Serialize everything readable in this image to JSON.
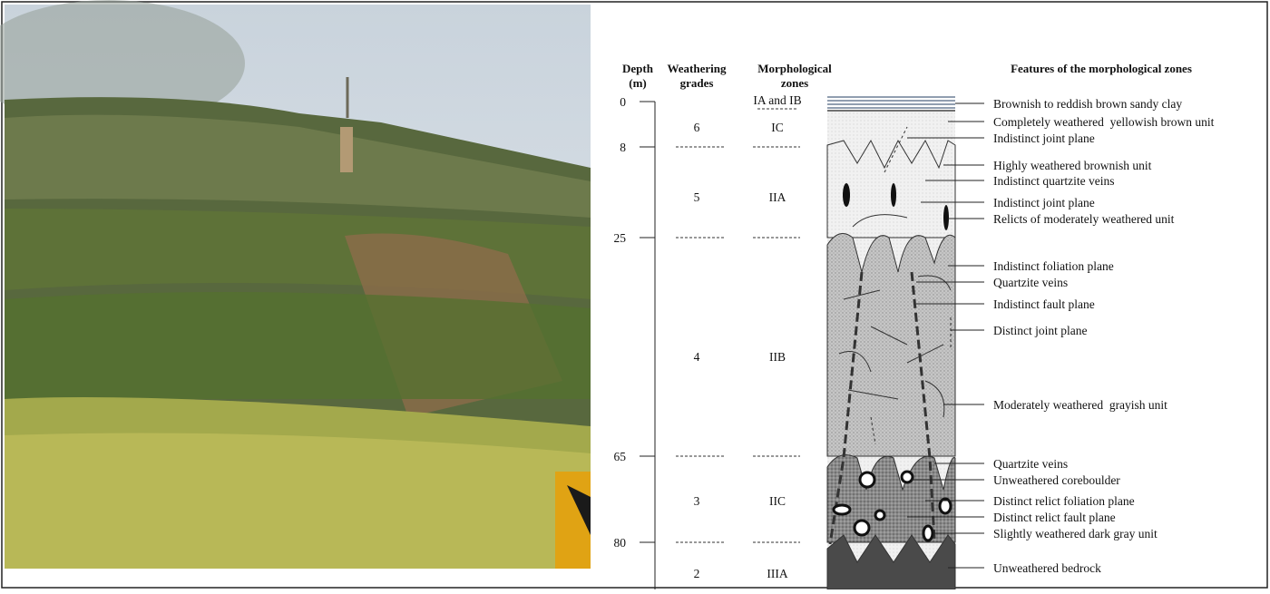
{
  "headers": {
    "depth": [
      "Depth",
      "(m)"
    ],
    "grades": [
      "Weathering",
      "grades"
    ],
    "zones": [
      "Morphological",
      "zones"
    ],
    "features": "Features of the morphological zones"
  },
  "depths": [
    0,
    8,
    25,
    65,
    80
  ],
  "grades": [
    "6",
    "5",
    "4",
    "3",
    "2"
  ],
  "zones": [
    "IA and IB",
    "IC",
    "IIA",
    "IIB",
    "IIC",
    "IIIA"
  ],
  "features": [
    "Brownish to reddish brown sandy clay",
    "Completely weathered  yellowish brown unit",
    "Indistinct joint plane",
    "Highly weathered brownish unit",
    "Indistinct quartzite veins",
    "Indistinct joint plane",
    "Relicts of moderately weathered unit",
    "Indistinct foliation plane",
    "Quartzite veins",
    "Indistinct fault plane",
    "Distinct joint plane",
    "Moderately weathered  grayish unit",
    "Quartzite veins",
    "Unweathered coreboulder",
    "Distinct relict foliation plane",
    "Distinct relict fault plane",
    "Slightly weathered dark gray unit",
    "Unweathered bedrock"
  ]
}
